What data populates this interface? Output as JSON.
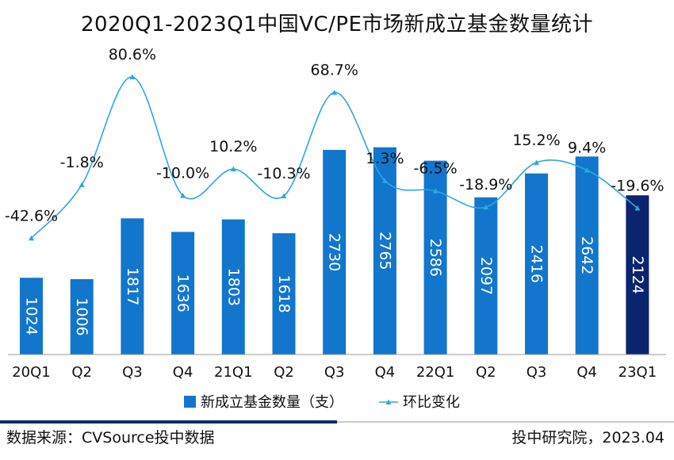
{
  "chart_data": {
    "type": "bar",
    "title": "2020Q1-2023Q1中国VC/PE市场新成立基金数量统计",
    "categories": [
      "20Q1",
      "Q2",
      "Q3",
      "Q4",
      "21Q1",
      "Q2",
      "Q3",
      "Q4",
      "22Q1",
      "Q2",
      "Q3",
      "Q4",
      "23Q1"
    ],
    "series": [
      {
        "name": "新成立基金数量（支）",
        "type": "bar",
        "values": [
          1024,
          1006,
          1817,
          1636,
          1803,
          1618,
          2730,
          2765,
          2586,
          2097,
          2416,
          2642,
          2124
        ],
        "labels": [
          "1024",
          "1006",
          "1817",
          "1636",
          "1803",
          "1618",
          "2730",
          "2765",
          "2586",
          "2097",
          "2416",
          "2642",
          "2124"
        ]
      },
      {
        "name": "环比变化",
        "type": "line",
        "values": [
          -42.6,
          -1.8,
          80.6,
          -10.0,
          10.2,
          -10.3,
          68.7,
          1.3,
          -6.5,
          -18.9,
          15.2,
          9.4,
          -19.6
        ],
        "labels": [
          "-42.6%",
          "-1.8%",
          "80.6%",
          "-10.0%",
          "10.2%",
          "-10.3%",
          "68.7%",
          "1.3%",
          "-6.5%",
          "-18.9%",
          "15.2%",
          "9.4%",
          "-19.6%"
        ]
      }
    ],
    "colors": {
      "bar": "#1276cc",
      "bar_last": "#0b2470",
      "line": "#2aa9dd",
      "bar_label": "#ffffff"
    },
    "legend": "bottom-center",
    "grid": false
  },
  "footer": {
    "source": "数据来源：CVSource投中数据",
    "credit": "投中研究院，2023.04"
  }
}
